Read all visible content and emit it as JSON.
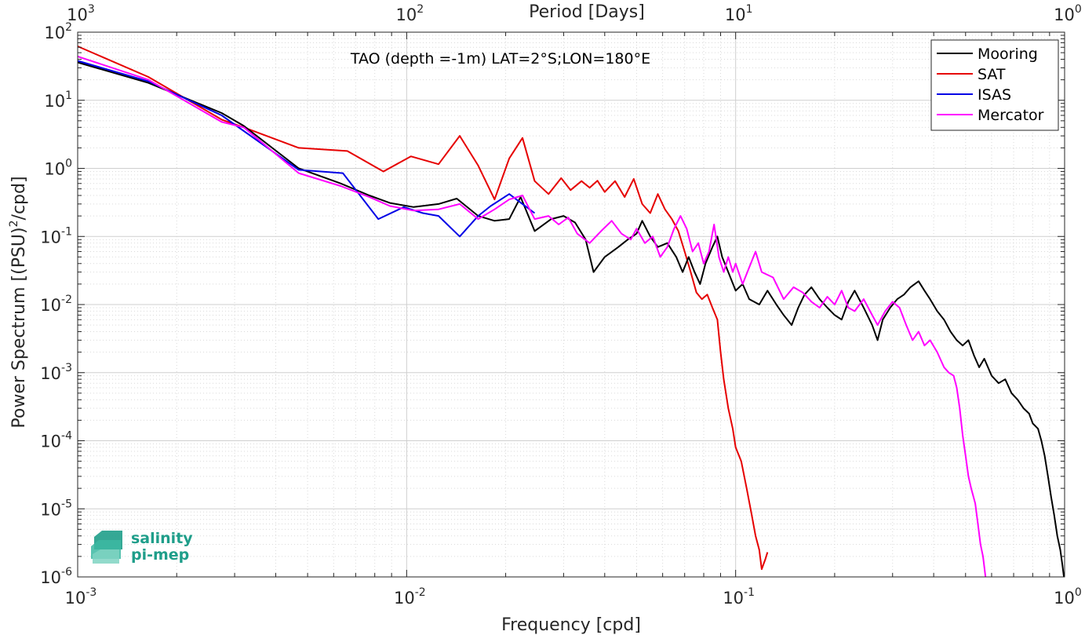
{
  "chart_data": {
    "type": "line",
    "title": "TAO (depth =-1m) LAT=2°S;LON=180°E",
    "xlabel": "Frequency [cpd]",
    "ylabel_main": "Power Spectrum [(PSU)",
    "ylabel_sup": "2",
    "ylabel_tail": "/cpd]",
    "x2label": "Period [Days]",
    "xscale": "log",
    "yscale": "log",
    "xlim": [
      0.001,
      1
    ],
    "ylim": [
      1e-06,
      100
    ],
    "grid": true,
    "legend_position": "top-right",
    "x_ticks": [
      {
        "v": 0.001,
        "base": "10",
        "exp": "-3"
      },
      {
        "v": 0.01,
        "base": "10",
        "exp": "-2"
      },
      {
        "v": 0.1,
        "base": "10",
        "exp": "-1"
      },
      {
        "v": 1,
        "base": "10",
        "exp": "0"
      }
    ],
    "x2_ticks": [
      {
        "v": 0.001,
        "base": "10",
        "exp": "3"
      },
      {
        "v": 0.01,
        "base": "10",
        "exp": "2"
      },
      {
        "v": 0.1,
        "base": "10",
        "exp": "1"
      },
      {
        "v": 1,
        "base": "10",
        "exp": "0"
      }
    ],
    "y_ticks": [
      {
        "v": 100,
        "base": "10",
        "exp": "2"
      },
      {
        "v": 10,
        "base": "10",
        "exp": "1"
      },
      {
        "v": 1,
        "base": "10",
        "exp": "0"
      },
      {
        "v": 0.1,
        "base": "10",
        "exp": "-1"
      },
      {
        "v": 0.01,
        "base": "10",
        "exp": "-2"
      },
      {
        "v": 0.001,
        "base": "10",
        "exp": "-3"
      },
      {
        "v": 0.0001,
        "base": "10",
        "exp": "-4"
      },
      {
        "v": 1e-05,
        "base": "10",
        "exp": "-5"
      },
      {
        "v": 1e-06,
        "base": "10",
        "exp": "-6"
      }
    ],
    "series": [
      {
        "name": "Mooring",
        "color": "#000000",
        "points": [
          [
            0.001,
            36
          ],
          [
            0.00164,
            18
          ],
          [
            0.00274,
            6.5
          ],
          [
            0.0032,
            4.2
          ],
          [
            0.0047,
            1.0
          ],
          [
            0.0063,
            0.6
          ],
          [
            0.0077,
            0.4
          ],
          [
            0.0089,
            0.31
          ],
          [
            0.0105,
            0.27
          ],
          [
            0.0125,
            0.3
          ],
          [
            0.0142,
            0.36
          ],
          [
            0.0165,
            0.2
          ],
          [
            0.0185,
            0.17
          ],
          [
            0.0205,
            0.18
          ],
          [
            0.0222,
            0.38
          ],
          [
            0.0245,
            0.12
          ],
          [
            0.0275,
            0.18
          ],
          [
            0.03,
            0.2
          ],
          [
            0.0325,
            0.16
          ],
          [
            0.035,
            0.09
          ],
          [
            0.037,
            0.03
          ],
          [
            0.04,
            0.05
          ],
          [
            0.044,
            0.07
          ],
          [
            0.047,
            0.09
          ],
          [
            0.05,
            0.11
          ],
          [
            0.052,
            0.17
          ],
          [
            0.055,
            0.1
          ],
          [
            0.058,
            0.07
          ],
          [
            0.062,
            0.08
          ],
          [
            0.066,
            0.05
          ],
          [
            0.069,
            0.03
          ],
          [
            0.072,
            0.05
          ],
          [
            0.075,
            0.03
          ],
          [
            0.078,
            0.02
          ],
          [
            0.081,
            0.04
          ],
          [
            0.085,
            0.07
          ],
          [
            0.088,
            0.1
          ],
          [
            0.091,
            0.05
          ],
          [
            0.095,
            0.03
          ],
          [
            0.1,
            0.016
          ],
          [
            0.105,
            0.02
          ],
          [
            0.11,
            0.012
          ],
          [
            0.118,
            0.01
          ],
          [
            0.125,
            0.016
          ],
          [
            0.133,
            0.01
          ],
          [
            0.14,
            0.007
          ],
          [
            0.148,
            0.005
          ],
          [
            0.155,
            0.009
          ],
          [
            0.162,
            0.014
          ],
          [
            0.17,
            0.018
          ],
          [
            0.18,
            0.012
          ],
          [
            0.19,
            0.009
          ],
          [
            0.2,
            0.007
          ],
          [
            0.21,
            0.006
          ],
          [
            0.22,
            0.011
          ],
          [
            0.23,
            0.016
          ],
          [
            0.245,
            0.009
          ],
          [
            0.26,
            0.005
          ],
          [
            0.27,
            0.003
          ],
          [
            0.28,
            0.006
          ],
          [
            0.295,
            0.009
          ],
          [
            0.31,
            0.012
          ],
          [
            0.325,
            0.014
          ],
          [
            0.34,
            0.018
          ],
          [
            0.36,
            0.022
          ],
          [
            0.375,
            0.016
          ],
          [
            0.39,
            0.012
          ],
          [
            0.41,
            0.008
          ],
          [
            0.43,
            0.006
          ],
          [
            0.45,
            0.004
          ],
          [
            0.47,
            0.003
          ],
          [
            0.49,
            0.0025
          ],
          [
            0.51,
            0.003
          ],
          [
            0.53,
            0.0018
          ],
          [
            0.55,
            0.0012
          ],
          [
            0.57,
            0.0016
          ],
          [
            0.6,
            0.0009
          ],
          [
            0.63,
            0.0007
          ],
          [
            0.66,
            0.0008
          ],
          [
            0.69,
            0.0005
          ],
          [
            0.72,
            0.0004
          ],
          [
            0.75,
            0.0003
          ],
          [
            0.78,
            0.00025
          ],
          [
            0.8,
            0.00018
          ],
          [
            0.83,
            0.00015
          ],
          [
            0.85,
            0.0001
          ],
          [
            0.87,
            6e-05
          ],
          [
            0.89,
            3e-05
          ],
          [
            0.91,
            1.5e-05
          ],
          [
            0.93,
            8e-06
          ],
          [
            0.95,
            4e-06
          ],
          [
            0.97,
            2.5e-06
          ],
          [
            0.985,
            1.5e-06
          ],
          [
            0.995,
            1e-06
          ]
        ]
      },
      {
        "name": "SAT",
        "color": "#e60000",
        "points": [
          [
            0.001,
            62
          ],
          [
            0.00164,
            22
          ],
          [
            0.00274,
            5.2
          ],
          [
            0.0032,
            4.0
          ],
          [
            0.0047,
            2.0
          ],
          [
            0.0066,
            1.8
          ],
          [
            0.0085,
            0.9
          ],
          [
            0.0103,
            1.5
          ],
          [
            0.0125,
            1.15
          ],
          [
            0.0145,
            3.0
          ],
          [
            0.0165,
            1.1
          ],
          [
            0.0185,
            0.35
          ],
          [
            0.0205,
            1.4
          ],
          [
            0.0225,
            2.8
          ],
          [
            0.0245,
            0.65
          ],
          [
            0.027,
            0.42
          ],
          [
            0.0295,
            0.72
          ],
          [
            0.0315,
            0.48
          ],
          [
            0.034,
            0.65
          ],
          [
            0.036,
            0.52
          ],
          [
            0.038,
            0.66
          ],
          [
            0.04,
            0.45
          ],
          [
            0.043,
            0.65
          ],
          [
            0.046,
            0.38
          ],
          [
            0.049,
            0.7
          ],
          [
            0.052,
            0.3
          ],
          [
            0.055,
            0.22
          ],
          [
            0.058,
            0.42
          ],
          [
            0.061,
            0.25
          ],
          [
            0.064,
            0.18
          ],
          [
            0.067,
            0.12
          ],
          [
            0.07,
            0.06
          ],
          [
            0.073,
            0.03
          ],
          [
            0.076,
            0.015
          ],
          [
            0.079,
            0.012
          ],
          [
            0.082,
            0.014
          ],
          [
            0.085,
            0.009
          ],
          [
            0.088,
            0.006
          ],
          [
            0.09,
            0.002
          ],
          [
            0.092,
            0.0008
          ],
          [
            0.095,
            0.0003
          ],
          [
            0.098,
            0.00015
          ],
          [
            0.1,
            8e-05
          ],
          [
            0.104,
            5e-05
          ],
          [
            0.108,
            2e-05
          ],
          [
            0.112,
            8e-06
          ],
          [
            0.115,
            4e-06
          ],
          [
            0.118,
            2.5e-06
          ],
          [
            0.12,
            1.3e-06
          ],
          [
            0.123,
            1.8e-06
          ],
          [
            0.125,
            2.3e-06
          ]
        ]
      },
      {
        "name": "ISAS",
        "color": "#0000e6",
        "points": [
          [
            0.001,
            38
          ],
          [
            0.00164,
            19
          ],
          [
            0.00274,
            6.0
          ],
          [
            0.0047,
            0.95
          ],
          [
            0.0064,
            0.85
          ],
          [
            0.0082,
            0.18
          ],
          [
            0.0098,
            0.27
          ],
          [
            0.0112,
            0.22
          ],
          [
            0.0125,
            0.2
          ],
          [
            0.0145,
            0.1
          ],
          [
            0.0165,
            0.2
          ],
          [
            0.018,
            0.28
          ],
          [
            0.0205,
            0.42
          ],
          [
            0.0225,
            0.3
          ],
          [
            0.0245,
            0.22
          ]
        ]
      },
      {
        "name": "Mercator",
        "color": "#ff00ff",
        "points": [
          [
            0.001,
            44
          ],
          [
            0.00164,
            20
          ],
          [
            0.00274,
            4.8
          ],
          [
            0.0032,
            4.0
          ],
          [
            0.0047,
            0.85
          ],
          [
            0.0063,
            0.55
          ],
          [
            0.0077,
            0.38
          ],
          [
            0.0089,
            0.28
          ],
          [
            0.0105,
            0.24
          ],
          [
            0.0125,
            0.25
          ],
          [
            0.0145,
            0.3
          ],
          [
            0.0165,
            0.18
          ],
          [
            0.0185,
            0.25
          ],
          [
            0.0205,
            0.35
          ],
          [
            0.0225,
            0.4
          ],
          [
            0.0245,
            0.18
          ],
          [
            0.027,
            0.2
          ],
          [
            0.029,
            0.15
          ],
          [
            0.031,
            0.19
          ],
          [
            0.033,
            0.11
          ],
          [
            0.036,
            0.08
          ],
          [
            0.039,
            0.12
          ],
          [
            0.042,
            0.17
          ],
          [
            0.045,
            0.11
          ],
          [
            0.048,
            0.09
          ],
          [
            0.05,
            0.13
          ],
          [
            0.053,
            0.08
          ],
          [
            0.056,
            0.1
          ],
          [
            0.059,
            0.05
          ],
          [
            0.062,
            0.07
          ],
          [
            0.065,
            0.13
          ],
          [
            0.068,
            0.2
          ],
          [
            0.071,
            0.13
          ],
          [
            0.074,
            0.06
          ],
          [
            0.077,
            0.08
          ],
          [
            0.08,
            0.04
          ],
          [
            0.083,
            0.06
          ],
          [
            0.086,
            0.15
          ],
          [
            0.089,
            0.05
          ],
          [
            0.092,
            0.03
          ],
          [
            0.095,
            0.05
          ],
          [
            0.098,
            0.03
          ],
          [
            0.1,
            0.04
          ],
          [
            0.105,
            0.02
          ],
          [
            0.11,
            0.035
          ],
          [
            0.115,
            0.06
          ],
          [
            0.12,
            0.03
          ],
          [
            0.13,
            0.025
          ],
          [
            0.14,
            0.012
          ],
          [
            0.15,
            0.018
          ],
          [
            0.16,
            0.015
          ],
          [
            0.17,
            0.011
          ],
          [
            0.18,
            0.009
          ],
          [
            0.19,
            0.013
          ],
          [
            0.2,
            0.01
          ],
          [
            0.21,
            0.016
          ],
          [
            0.22,
            0.009
          ],
          [
            0.23,
            0.008
          ],
          [
            0.245,
            0.012
          ],
          [
            0.26,
            0.007
          ],
          [
            0.27,
            0.005
          ],
          [
            0.285,
            0.008
          ],
          [
            0.3,
            0.011
          ],
          [
            0.315,
            0.009
          ],
          [
            0.33,
            0.005
          ],
          [
            0.345,
            0.003
          ],
          [
            0.36,
            0.004
          ],
          [
            0.375,
            0.0025
          ],
          [
            0.39,
            0.003
          ],
          [
            0.41,
            0.002
          ],
          [
            0.43,
            0.0012
          ],
          [
            0.445,
            0.001
          ],
          [
            0.46,
            0.0009
          ],
          [
            0.47,
            0.0006
          ],
          [
            0.48,
            0.0003
          ],
          [
            0.49,
            0.00012
          ],
          [
            0.5,
            6e-05
          ],
          [
            0.51,
            3e-05
          ],
          [
            0.52,
            2e-05
          ],
          [
            0.535,
            1.2e-05
          ],
          [
            0.545,
            6e-06
          ],
          [
            0.555,
            3e-06
          ],
          [
            0.565,
            2e-06
          ],
          [
            0.575,
            1e-06
          ]
        ]
      }
    ]
  },
  "logo": {
    "line1": "salinity",
    "line2": "pi-mep",
    "color": "#1f9e8a"
  }
}
